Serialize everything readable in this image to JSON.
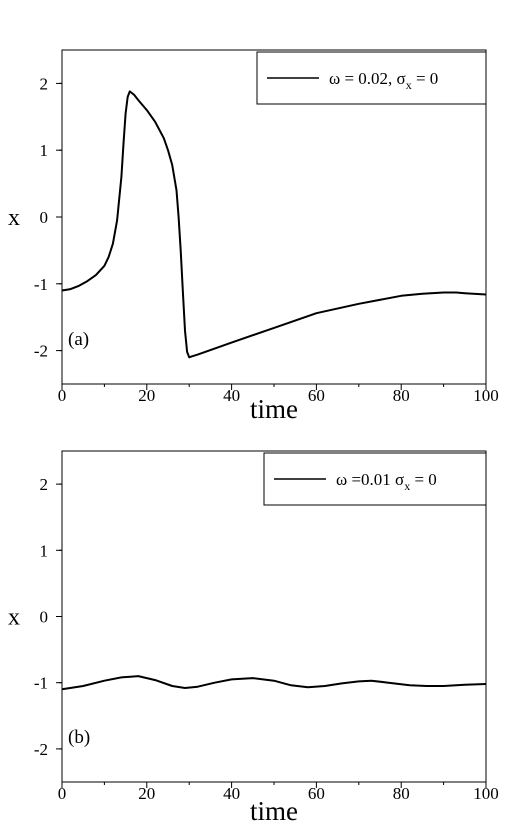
{
  "chart_data": [
    {
      "type": "line",
      "panel_label": "(a)",
      "xlabel": "time",
      "ylabel": "x",
      "xlim": [
        0,
        100
      ],
      "ylim": [
        -2.5,
        2.5
      ],
      "xticks": [
        0,
        20,
        40,
        60,
        80,
        100
      ],
      "yticks": [
        2,
        1,
        0,
        -1,
        -2
      ],
      "grid": false,
      "legend_position": "top-right",
      "series": [
        {
          "name": "ω = 0.02, σ_x= 0",
          "legend_text": {
            "main": "ω = 0.02, σ",
            "sub": "x",
            "tail": "= 0"
          },
          "color": "#000000",
          "x": [
            0,
            2,
            4,
            6,
            8,
            10,
            11,
            12,
            13,
            14,
            14.5,
            15,
            15.5,
            16,
            17,
            18,
            20,
            22,
            24,
            25,
            26,
            27,
            27.5,
            28,
            28.5,
            29,
            29.5,
            30,
            30.5,
            32,
            40,
            50,
            60,
            70,
            80,
            85,
            90,
            93,
            95,
            100
          ],
          "y": [
            -1.1,
            -1.08,
            -1.03,
            -0.96,
            -0.87,
            -0.73,
            -0.6,
            -0.4,
            -0.05,
            0.6,
            1.1,
            1.55,
            1.8,
            1.88,
            1.83,
            1.75,
            1.6,
            1.42,
            1.18,
            1.0,
            0.78,
            0.4,
            0.0,
            -0.5,
            -1.1,
            -1.7,
            -2.02,
            -2.1,
            -2.09,
            -2.06,
            -1.88,
            -1.66,
            -1.44,
            -1.3,
            -1.18,
            -1.15,
            -1.13,
            -1.13,
            -1.14,
            -1.16
          ]
        }
      ]
    },
    {
      "type": "line",
      "panel_label": "(b)",
      "xlabel": "time",
      "ylabel": "x",
      "xlim": [
        0,
        100
      ],
      "ylim": [
        -2.5,
        2.5
      ],
      "xticks": [
        0,
        20,
        40,
        60,
        80,
        100
      ],
      "yticks": [
        2,
        1,
        0,
        -1,
        -2
      ],
      "grid": false,
      "legend_position": "top-right",
      "series": [
        {
          "name": "ω =0.01 σ_x = 0",
          "legend_text": {
            "main": "ω =0.01 σ",
            "sub": "x",
            "tail": "= 0"
          },
          "color": "#000000",
          "x": [
            0,
            5,
            10,
            14,
            18,
            22,
            26,
            29,
            32,
            36,
            40,
            45,
            50,
            54,
            58,
            62,
            66,
            70,
            73,
            77,
            82,
            86,
            90,
            95,
            100
          ],
          "y": [
            -1.1,
            -1.05,
            -0.97,
            -0.92,
            -0.9,
            -0.96,
            -1.05,
            -1.08,
            -1.06,
            -1.0,
            -0.95,
            -0.93,
            -0.97,
            -1.04,
            -1.07,
            -1.05,
            -1.01,
            -0.98,
            -0.97,
            -1.0,
            -1.04,
            -1.05,
            -1.05,
            -1.03,
            -1.02
          ]
        }
      ]
    }
  ]
}
